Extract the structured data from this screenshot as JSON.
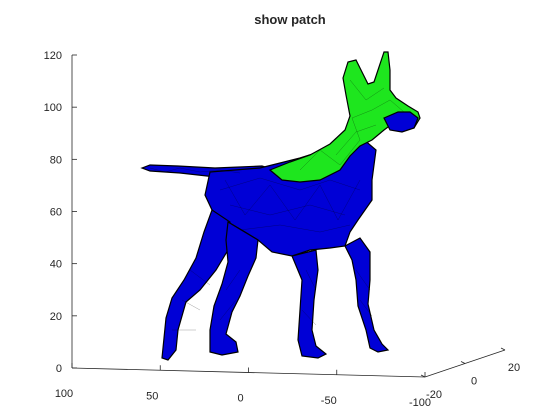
{
  "chart_data": {
    "type": "3d-surface",
    "title": "show patch",
    "zlabel": "",
    "xlabel": "",
    "ylabel": "",
    "zticks": [
      "0",
      "20",
      "40",
      "60",
      "80",
      "100",
      "120"
    ],
    "xticks": [
      "100",
      "50",
      "0",
      "-50",
      "-100"
    ],
    "yticks": [
      "-20",
      "0",
      "20"
    ],
    "zlim": [
      0,
      120
    ],
    "xlim": [
      100,
      -100
    ],
    "ylim": [
      -20,
      20
    ],
    "grid": false,
    "colors": {
      "mesh": "#0000d6",
      "patch": "#1ee61e",
      "edge": "#000000"
    }
  }
}
